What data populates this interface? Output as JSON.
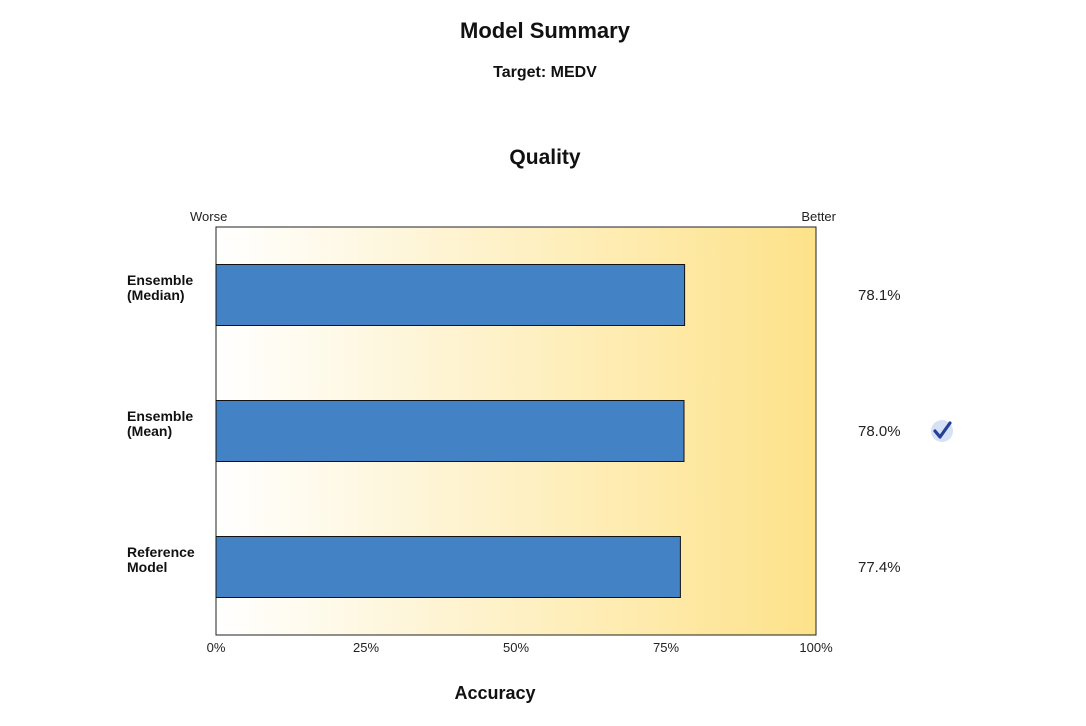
{
  "header": {
    "title": "Model Summary",
    "subtitle": "Target: MEDV"
  },
  "chart_data": {
    "type": "bar",
    "orientation": "horizontal",
    "title": "Quality",
    "xlabel": "Accuracy",
    "ylabel": "",
    "xlim": [
      0,
      100
    ],
    "x_ticks": [
      "0%",
      "25%",
      "50%",
      "75%",
      "100%"
    ],
    "scale_left_label": "Worse",
    "scale_right_label": "Better",
    "categories": [
      [
        "Ensemble",
        "(Median)"
      ],
      [
        "Ensemble",
        "(Mean)"
      ],
      [
        "Reference",
        "Model"
      ]
    ],
    "values": [
      78.1,
      78.0,
      77.4
    ],
    "value_labels": [
      "78.1%",
      "78.0%",
      "77.4%"
    ],
    "selected_index": 1,
    "selected_icon": "checkmark-icon",
    "bar_color": "#4382c4",
    "background_gradient": [
      "#ffffff",
      "#fde28a"
    ],
    "grid": false
  }
}
